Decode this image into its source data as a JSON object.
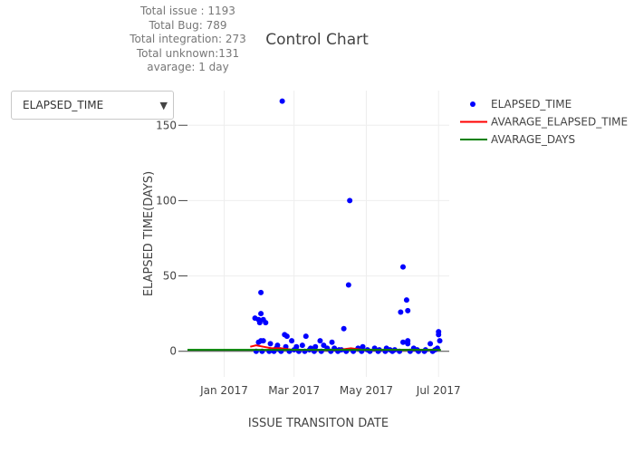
{
  "stats": [
    "Total issue : 1193",
    "Total Bug: 789",
    "Total integration: 273",
    "Total unknown:131",
    "avarage: 1 day"
  ],
  "dropdown": {
    "selected": "ELAPSED_TIME",
    "arrow_icon": "triangle-down-icon"
  },
  "chart_data": {
    "type": "scatter",
    "title": "Control Chart",
    "xlabel": "ISSUE TRANSITON DATE",
    "ylabel": "ELAPSED TIME(DAYS)",
    "xlim": [
      "2016-12-01",
      "2017-07-10"
    ],
    "ylim": [
      -17,
      173
    ],
    "x_ticks": [
      {
        "date": "2017-01-01",
        "label": "Jan 2017"
      },
      {
        "date": "2017-03-01",
        "label": "Mar 2017"
      },
      {
        "date": "2017-05-01",
        "label": "May 2017"
      },
      {
        "date": "2017-07-01",
        "label": "Jul 2017"
      }
    ],
    "y_ticks": [
      0,
      50,
      100,
      150
    ],
    "grid": true,
    "legend": "top-right",
    "series": [
      {
        "name": "ELAPSED_TIME",
        "mode": "markers",
        "color": "#0000ff",
        "points": [
          [
            "2017-02-19",
            166
          ],
          [
            "2017-04-17",
            100
          ],
          [
            "2017-04-16",
            44
          ],
          [
            "2017-06-01",
            56
          ],
          [
            "2017-06-04",
            34
          ],
          [
            "2017-06-05",
            27
          ],
          [
            "2017-05-30",
            26
          ],
          [
            "2017-04-12",
            15
          ],
          [
            "2017-02-01",
            39
          ],
          [
            "2017-02-01",
            25
          ],
          [
            "2017-01-30",
            21
          ],
          [
            "2017-01-31",
            19
          ],
          [
            "2017-02-03",
            21
          ],
          [
            "2017-02-05",
            19
          ],
          [
            "2017-01-27",
            22
          ],
          [
            "2017-02-21",
            11
          ],
          [
            "2017-02-23",
            10
          ],
          [
            "2017-03-11",
            10
          ],
          [
            "2017-03-23",
            7
          ],
          [
            "2017-04-02",
            6
          ],
          [
            "2017-02-27",
            7
          ],
          [
            "2017-01-30",
            6
          ],
          [
            "2017-02-01",
            7
          ],
          [
            "2017-02-03",
            7
          ],
          [
            "2017-02-09",
            5
          ],
          [
            "2017-02-15",
            4
          ],
          [
            "2017-02-22",
            3
          ],
          [
            "2017-03-03",
            3
          ],
          [
            "2017-03-08",
            4
          ],
          [
            "2017-03-15",
            2
          ],
          [
            "2017-03-19",
            3
          ],
          [
            "2017-03-26",
            4
          ],
          [
            "2017-03-29",
            2
          ],
          [
            "2017-04-04",
            2
          ],
          [
            "2017-04-08",
            1
          ],
          [
            "2017-04-24",
            2
          ],
          [
            "2017-04-28",
            3
          ],
          [
            "2017-05-02",
            1
          ],
          [
            "2017-05-08",
            2
          ],
          [
            "2017-05-12",
            1
          ],
          [
            "2017-05-18",
            2
          ],
          [
            "2017-05-25",
            1
          ],
          [
            "2017-06-01",
            6
          ],
          [
            "2017-06-05",
            5
          ],
          [
            "2017-06-05",
            7
          ],
          [
            "2017-06-10",
            2
          ],
          [
            "2017-06-20",
            1
          ],
          [
            "2017-06-24",
            5
          ],
          [
            "2017-07-01",
            13
          ],
          [
            "2017-07-01",
            11
          ],
          [
            "2017-07-02",
            7
          ],
          [
            "2017-06-30",
            2
          ],
          [
            "2017-01-28",
            0
          ],
          [
            "2017-02-02",
            0
          ],
          [
            "2017-02-08",
            0
          ],
          [
            "2017-02-12",
            0
          ],
          [
            "2017-02-18",
            0
          ],
          [
            "2017-02-25",
            0
          ],
          [
            "2017-03-05",
            0
          ],
          [
            "2017-03-10",
            0
          ],
          [
            "2017-03-18",
            0
          ],
          [
            "2017-03-24",
            0
          ],
          [
            "2017-04-01",
            0
          ],
          [
            "2017-04-07",
            0
          ],
          [
            "2017-04-14",
            0
          ],
          [
            "2017-04-20",
            0
          ],
          [
            "2017-04-27",
            0
          ],
          [
            "2017-05-04",
            0
          ],
          [
            "2017-05-11",
            0
          ],
          [
            "2017-05-17",
            0
          ],
          [
            "2017-05-23",
            0
          ],
          [
            "2017-05-29",
            0
          ],
          [
            "2017-06-07",
            0
          ],
          [
            "2017-06-14",
            0
          ],
          [
            "2017-06-19",
            0
          ],
          [
            "2017-06-26",
            0
          ],
          [
            "2017-02-14",
            2
          ],
          [
            "2017-02-17",
            1
          ],
          [
            "2017-03-01",
            1
          ],
          [
            "2017-03-14",
            1
          ],
          [
            "2017-04-10",
            1
          ],
          [
            "2017-05-21",
            1
          ],
          [
            "2017-06-13",
            1
          ],
          [
            "2017-06-28",
            1
          ]
        ]
      },
      {
        "name": "AVARAGE_ELAPSED_TIME",
        "mode": "lines",
        "color": "#ff0000",
        "points": [
          [
            "2017-01-23",
            3
          ],
          [
            "2017-01-28",
            4
          ],
          [
            "2017-02-03",
            3
          ],
          [
            "2017-02-10",
            2
          ],
          [
            "2017-02-18",
            2
          ],
          [
            "2017-02-28",
            1
          ],
          [
            "2017-03-12",
            1
          ],
          [
            "2017-03-26",
            1
          ],
          [
            "2017-04-08",
            1
          ],
          [
            "2017-04-18",
            2
          ],
          [
            "2017-04-28",
            1
          ],
          [
            "2017-05-10",
            1
          ],
          [
            "2017-05-24",
            1
          ],
          [
            "2017-06-06",
            1
          ],
          [
            "2017-06-20",
            1
          ],
          [
            "2017-07-01",
            1
          ]
        ]
      },
      {
        "name": "AVARAGE_DAYS",
        "mode": "lines",
        "color": "#008000",
        "points": [
          [
            "2016-12-01",
            1
          ],
          [
            "2017-07-03",
            1
          ]
        ]
      }
    ]
  }
}
